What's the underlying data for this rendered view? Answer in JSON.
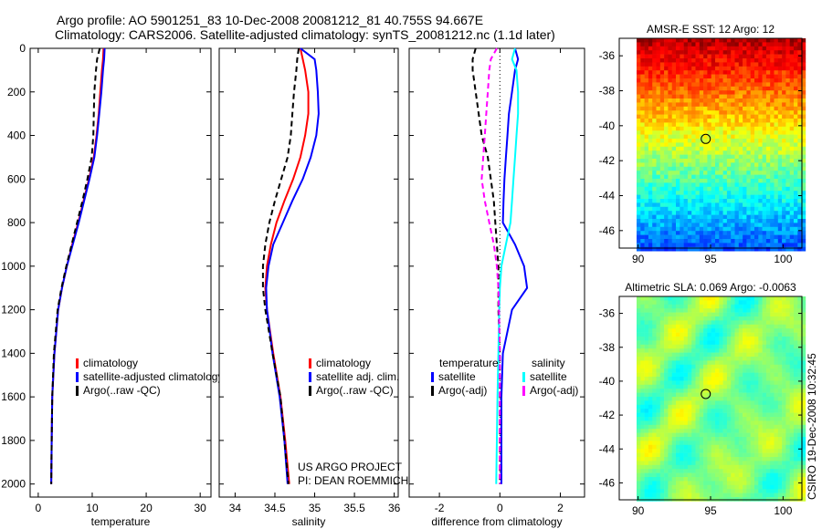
{
  "title_line1": "Argo profile: AO 5901251_83 10-Dec-2008 20081212_81 40.755S 94.667E",
  "title_line2": "Climatology: CARS2006. Satellite-adjusted climatology: synTS_20081212.nc (1.1d later)",
  "chart_data": [
    {
      "type": "line",
      "name": "temperature",
      "xlabel": "temperature",
      "xlim": [
        -1.5,
        32
      ],
      "ylim": [
        2060,
        0
      ],
      "xticks": [
        0,
        10,
        20,
        30
      ],
      "yticks": [
        0,
        200,
        400,
        600,
        800,
        1000,
        1200,
        1400,
        1600,
        1800,
        2000
      ],
      "depth": [
        0,
        50,
        100,
        200,
        300,
        400,
        500,
        600,
        700,
        800,
        900,
        1000,
        1100,
        1200,
        1400,
        1600,
        1800,
        2000
      ],
      "series": [
        {
          "name": "climatology",
          "color": "#ff0000",
          "dash": "",
          "values": [
            12.1,
            12.0,
            11.8,
            11.5,
            11.2,
            10.8,
            10.3,
            9.4,
            8.4,
            7.4,
            6.3,
            5.3,
            4.4,
            3.7,
            3.0,
            2.6,
            2.5,
            2.4
          ]
        },
        {
          "name": "satellite-adjusted climatology",
          "color": "#0000ff",
          "dash": "",
          "values": [
            12.3,
            12.2,
            12.0,
            11.7,
            11.3,
            10.9,
            10.4,
            9.5,
            8.5,
            7.5,
            6.4,
            5.3,
            4.4,
            3.7,
            3.0,
            2.6,
            2.5,
            2.4
          ]
        },
        {
          "name": "Argo(..raw -QC)",
          "color": "#000000",
          "dash": "6,4",
          "values": [
            11.4,
            10.9,
            10.7,
            10.4,
            10.3,
            10.2,
            9.9,
            9.1,
            8.2,
            7.2,
            6.2,
            5.2,
            4.3,
            3.6,
            2.9,
            2.6,
            2.5,
            2.4
          ]
        }
      ],
      "legend": [
        "climatology",
        "satellite-adjusted climatology",
        "Argo(..raw -QC)"
      ]
    },
    {
      "type": "line",
      "name": "salinity",
      "xlabel": "salinity",
      "xlim": [
        33.8,
        36.05
      ],
      "ylim": [
        2060,
        0
      ],
      "xticks": [
        34,
        34.5,
        35,
        35.5,
        36
      ],
      "depth": [
        0,
        50,
        100,
        200,
        300,
        400,
        500,
        600,
        700,
        800,
        900,
        1000,
        1100,
        1200,
        1400,
        1600,
        1800,
        2000
      ],
      "series": [
        {
          "name": "climatology",
          "color": "#ff0000",
          "dash": "",
          "values": [
            34.82,
            34.85,
            34.88,
            34.92,
            34.92,
            34.88,
            34.82,
            34.73,
            34.62,
            34.52,
            34.45,
            34.4,
            34.38,
            34.4,
            34.48,
            34.57,
            34.63,
            34.68
          ]
        },
        {
          "name": "satellite adj. clim.",
          "color": "#0000ff",
          "dash": "",
          "values": [
            34.82,
            35.0,
            35.02,
            35.04,
            35.05,
            35.02,
            34.95,
            34.85,
            34.72,
            34.6,
            34.48,
            34.42,
            34.39,
            34.4,
            34.47,
            34.56,
            34.62,
            34.66
          ]
        },
        {
          "name": "Argo(..raw -QC)",
          "color": "#000000",
          "dash": "6,4",
          "values": [
            34.8,
            34.78,
            34.77,
            34.74,
            34.72,
            34.7,
            34.66,
            34.58,
            34.5,
            34.43,
            34.38,
            34.35,
            34.35,
            34.38,
            34.47,
            34.57,
            34.62,
            34.67
          ]
        }
      ],
      "legend": [
        "climatology",
        "satellite adj. clim.",
        "Argo(..raw -QC)"
      ],
      "annotation": [
        "US ARGO PROJECT",
        "PI: DEAN ROEMMICH"
      ]
    },
    {
      "type": "line",
      "name": "difference",
      "xlabel": "difference from climatology",
      "xlim": [
        -3,
        2.8
      ],
      "ylim": [
        2060,
        0
      ],
      "xticks": [
        -2,
        0,
        2
      ],
      "depth": [
        0,
        50,
        100,
        200,
        300,
        400,
        500,
        600,
        700,
        800,
        900,
        1000,
        1100,
        1200,
        1400,
        1600,
        1800,
        2000
      ],
      "series": [
        {
          "name": "temperature satellite",
          "color": "#0000ff",
          "dash": "",
          "values": [
            0.5,
            0.6,
            0.5,
            0.4,
            0.3,
            0.25,
            0.2,
            0.15,
            0.12,
            0.1,
            0.5,
            0.8,
            0.9,
            0.4,
            0.1,
            0.05,
            0.05,
            0.05
          ]
        },
        {
          "name": "temperature Argo(-adj)",
          "color": "#000000",
          "dash": "6,4",
          "values": [
            -0.8,
            -0.9,
            -0.9,
            -0.8,
            -0.7,
            -0.6,
            -0.4,
            -0.3,
            -0.2,
            -0.15,
            -0.1,
            -0.05,
            -0.05,
            -0.05,
            0,
            0,
            0,
            0
          ]
        },
        {
          "name": "salinity satellite",
          "color": "#00ffff",
          "dash": "",
          "values": [
            0.5,
            0.4,
            0.55,
            0.6,
            0.6,
            0.55,
            0.5,
            0.45,
            0.4,
            0.35,
            0.2,
            0.05,
            0,
            -0.02,
            -0.05,
            -0.08,
            -0.1,
            -0.12
          ]
        },
        {
          "name": "salinity Argo(-adj)",
          "color": "#ff00ff",
          "dash": "6,4",
          "values": [
            -0.1,
            -0.3,
            -0.35,
            -0.4,
            -0.45,
            -0.5,
            -0.55,
            -0.6,
            -0.5,
            -0.35,
            -0.2,
            -0.1,
            -0.05,
            -0.03,
            0,
            0,
            0,
            0
          ]
        }
      ],
      "legend_temp": {
        "header": "temperature",
        "items": [
          "satellite",
          "Argo(-adj)"
        ]
      },
      "legend_sal": {
        "header": "salinity",
        "items": [
          "satellite",
          "Argo(-adj)"
        ]
      }
    },
    {
      "type": "heatmap",
      "name": "sst-map",
      "title": "AMSR-E SST: 12 Argo: 12",
      "xlim": [
        88.7,
        101.3
      ],
      "ylim": [
        -47,
        -35
      ],
      "xticks": [
        90,
        95,
        100
      ],
      "yticks": [
        -36,
        -38,
        -40,
        -42,
        -44,
        -46
      ],
      "argo_position": [
        94.667,
        -40.755
      ]
    },
    {
      "type": "heatmap",
      "name": "sla-map",
      "title": "Altimetric SLA: 0.069 Argo: -0.0063",
      "xlim": [
        88.7,
        101.3
      ],
      "ylim": [
        -47,
        -35
      ],
      "xticks": [
        90,
        95,
        100
      ],
      "yticks": [
        -36,
        -38,
        -40,
        -42,
        -44,
        -46
      ],
      "argo_position": [
        94.667,
        -40.755
      ]
    }
  ],
  "credit": "CSIRO 19-Dec-2008 10:32:45"
}
